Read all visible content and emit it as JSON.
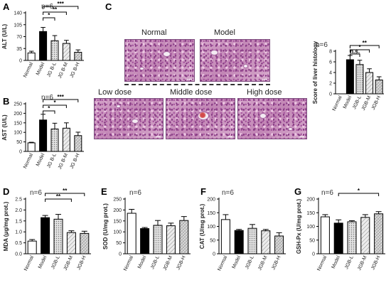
{
  "group_labels_short": [
    "Normal",
    "Model",
    "JGB-L",
    "JGB-M",
    "JGB-H"
  ],
  "colors": {
    "normal": "#ffffff",
    "model": "#000000",
    "low": "#bfbfbf",
    "medium": "#d9d9d9",
    "high": "#cccccc",
    "axis": "#000000"
  },
  "panels": {
    "C": {
      "letter": "C",
      "images": [
        {
          "key": "normal",
          "label": "Normal"
        },
        {
          "key": "model",
          "label": "Model"
        },
        {
          "key": "low",
          "label": "Low dose"
        },
        {
          "key": "middle",
          "label": "Middle dose"
        },
        {
          "key": "high",
          "label": "High dose"
        }
      ]
    }
  },
  "chart_data": [
    {
      "id": "A",
      "letter": "A",
      "type": "bar",
      "annotation": "n=6",
      "categories": [
        "Normal",
        "Model",
        "JG B-L",
        "JG B-M",
        "JG B-H"
      ],
      "values": [
        22,
        85,
        58,
        50,
        24
      ],
      "errors": [
        5,
        12,
        15,
        9,
        7
      ],
      "ylabel": "ALT (U/L)",
      "ylim": [
        0,
        140
      ],
      "yticks": [
        0,
        35,
        70,
        105,
        140
      ],
      "significance": [
        {
          "from": 1,
          "to": 2,
          "label": "*"
        },
        {
          "from": 1,
          "to": 3,
          "label": "**"
        },
        {
          "from": 1,
          "to": 4,
          "label": "***"
        }
      ]
    },
    {
      "id": "B",
      "letter": "B",
      "type": "bar",
      "annotation": "n=6",
      "categories": [
        "Normal",
        "Model",
        "JG B-L",
        "JG B-M",
        "JG B-H"
      ],
      "values": [
        45,
        165,
        118,
        122,
        83
      ],
      "errors": [
        3,
        30,
        30,
        28,
        18
      ],
      "ylabel": "AST (U/L)",
      "ylim": [
        0,
        250
      ],
      "yticks": [
        0,
        50,
        100,
        150,
        200,
        250
      ],
      "significance": [
        {
          "from": 1,
          "to": 2,
          "label": "*"
        },
        {
          "from": 1,
          "to": 3,
          "label": "*"
        },
        {
          "from": 1,
          "to": 4,
          "label": "***"
        }
      ]
    },
    {
      "id": "score",
      "type": "bar",
      "annotation": "n=6",
      "categories": [
        "Normal",
        "Model",
        "JGB-L",
        "JGB-M",
        "JGB-H"
      ],
      "values": [
        0,
        6.4,
        5.5,
        4.0,
        2.6
      ],
      "errors": [
        0,
        0.8,
        0.8,
        0.7,
        0.6
      ],
      "ylabel": "Score of liver histology",
      "ylim": [
        0,
        8
      ],
      "yticks": [
        0,
        2,
        4,
        6,
        8
      ],
      "significance": [
        {
          "from": 1,
          "to": 2,
          "label": "n.s."
        },
        {
          "from": 1,
          "to": 3,
          "label": "*"
        },
        {
          "from": 1,
          "to": 4,
          "label": "**"
        }
      ]
    },
    {
      "id": "D",
      "letter": "D",
      "type": "bar",
      "annotation": "n=6",
      "categories": [
        "Normal",
        "Model",
        "JGB-L",
        "JGB-M",
        "JGB-H"
      ],
      "values": [
        0.58,
        1.65,
        1.58,
        0.97,
        0.93
      ],
      "errors": [
        0.07,
        0.1,
        0.22,
        0.08,
        0.1
      ],
      "ylabel": "MDA (μg/mg prot.)",
      "ylim": [
        0,
        2.5
      ],
      "yticks": [
        0.0,
        0.5,
        1.0,
        1.5,
        2.0,
        2.5
      ],
      "significance": [
        {
          "from": 1,
          "to": 3,
          "label": "**"
        },
        {
          "from": 1,
          "to": 4,
          "label": "**"
        }
      ]
    },
    {
      "id": "E",
      "letter": "E",
      "type": "bar",
      "annotation": "n=6",
      "categories": [
        "Normal",
        "Model",
        "JGB-L",
        "JGB-M",
        "JGB-H"
      ],
      "values": [
        185,
        115,
        130,
        128,
        152
      ],
      "errors": [
        18,
        5,
        22,
        12,
        18
      ],
      "ylabel": "SOD (U/mg prot.)",
      "ylim": [
        0,
        250
      ],
      "yticks": [
        0,
        50,
        100,
        150,
        200,
        250
      ],
      "significance": []
    },
    {
      "id": "F",
      "letter": "F",
      "type": "bar",
      "annotation": "n=6",
      "categories": [
        "Normal",
        "Model",
        "JGB-L",
        "JGB-M",
        "JGB-H"
      ],
      "values": [
        125,
        85,
        93,
        84,
        65
      ],
      "errors": [
        18,
        4,
        14,
        5,
        12
      ],
      "ylabel": "CAT (U/mg prot.)",
      "ylim": [
        0,
        200
      ],
      "yticks": [
        0,
        50,
        100,
        150,
        200
      ],
      "significance": []
    },
    {
      "id": "G",
      "letter": "G",
      "type": "bar",
      "annotation": "n=6",
      "categories": [
        "Normal",
        "Model",
        "JGB-L",
        "JGB-M",
        "JGB-H"
      ],
      "values": [
        135,
        112,
        117,
        133,
        146
      ],
      "errors": [
        8,
        12,
        4,
        10,
        8
      ],
      "ylabel": "GSH-Px (U/mg prot.)",
      "ylim": [
        0,
        200
      ],
      "yticks": [
        0,
        50,
        100,
        150,
        200
      ],
      "significance": [
        {
          "from": 1,
          "to": 4,
          "label": "*"
        }
      ]
    }
  ]
}
